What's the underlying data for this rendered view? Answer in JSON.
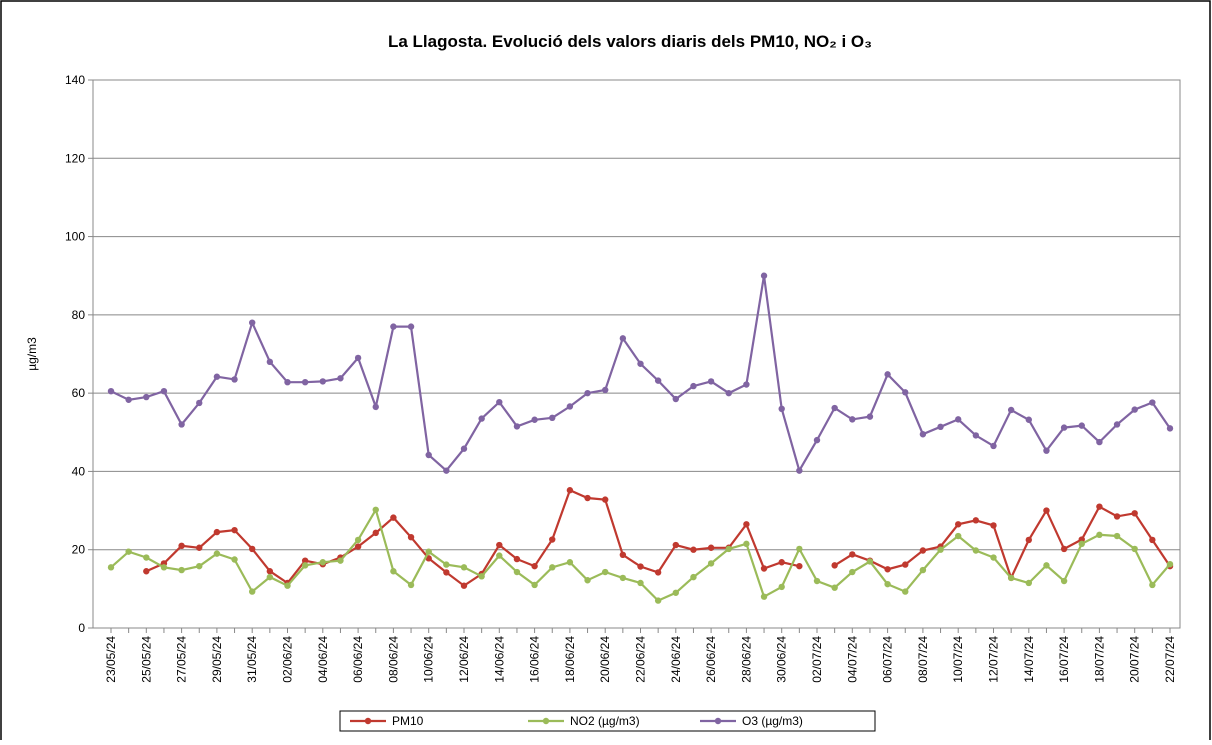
{
  "chart_data": {
    "type": "line",
    "title": "La Llagosta. Evolució dels valors diaris dels PM10, NO₂ i O₃",
    "y_label": "µg/m3",
    "categories": [
      "23/05/24",
      null,
      "25/05/24",
      null,
      "27/05/24",
      null,
      "29/05/24",
      null,
      "31/05/24",
      null,
      "02/06/24",
      null,
      "04/06/24",
      null,
      "06/06/24",
      null,
      "08/06/24",
      null,
      "10/06/24",
      null,
      "12/06/24",
      null,
      "14/06/24",
      null,
      "16/06/24",
      null,
      "18/06/24",
      null,
      "20/06/24",
      null,
      "22/06/24",
      null,
      "24/06/24",
      null,
      "26/06/24",
      null,
      "28/06/24",
      null,
      "30/06/24",
      null,
      "02/07/24",
      null,
      "04/07/24",
      null,
      "06/07/24",
      null,
      "08/07/24",
      null,
      "10/07/24",
      null,
      "12/07/24",
      null,
      "14/07/24",
      null,
      "16/07/24",
      null,
      "18/07/24",
      null,
      "20/07/24",
      null,
      "22/07/24"
    ],
    "series": [
      {
        "name": "PM10",
        "color": "#c0392f",
        "values": [
          null,
          null,
          14.5,
          16.5,
          21,
          20.5,
          24.5,
          25,
          20.2,
          14.5,
          11.5,
          17.2,
          16.3,
          18,
          20.8,
          24.3,
          28.2,
          23.2,
          17.8,
          14.2,
          10.8,
          13.8,
          21.2,
          17.6,
          15.8,
          22.6,
          35.2,
          33.2,
          32.8,
          18.7,
          15.7,
          14.2,
          21.2,
          20,
          20.5,
          20.5,
          26.5,
          15.2,
          16.8,
          15.8,
          null,
          16,
          18.8,
          17.2,
          15,
          16.2,
          19.8,
          20.8,
          26.5,
          27.5,
          26.2,
          12.8,
          22.5,
          30,
          20.2,
          22.6,
          31,
          28.5,
          29.3,
          22.5,
          15.8
        ]
      },
      {
        "name": "NO2 (µg/m3)",
        "color": "#9bbb59",
        "values": [
          15.5,
          19.5,
          18,
          15.5,
          14.8,
          15.8,
          19,
          17.5,
          9.3,
          13,
          10.8,
          16,
          16.8,
          17.2,
          22.5,
          30.2,
          14.5,
          11,
          19.5,
          16.2,
          15.5,
          13.2,
          18.5,
          14.3,
          11,
          15.5,
          16.8,
          12.2,
          14.3,
          12.8,
          11.5,
          7,
          9,
          13,
          16.5,
          20.2,
          21.5,
          8,
          10.5,
          20.2,
          12,
          10.3,
          14.3,
          17,
          11.2,
          9.3,
          14.8,
          20,
          23.5,
          19.8,
          18,
          12.8,
          11.5,
          16,
          12,
          21.5,
          23.8,
          23.5,
          20.2,
          11,
          16.3
        ]
      },
      {
        "name": "O3 (µg/m3)",
        "color": "#8064a2",
        "values": [
          60.5,
          58.3,
          59,
          60.5,
          52,
          57.5,
          64.2,
          63.5,
          78,
          68,
          62.8,
          62.8,
          63,
          63.8,
          69,
          56.5,
          77,
          77,
          44.2,
          40.2,
          45.8,
          53.5,
          57.7,
          51.5,
          53.2,
          53.7,
          56.6,
          60,
          60.8,
          74,
          67.5,
          63.2,
          58.5,
          61.8,
          63,
          60,
          62.2,
          90,
          56,
          40.2,
          48,
          56.2,
          53.3,
          54,
          64.8,
          60.2,
          49.5,
          51.4,
          53.3,
          49.2,
          46.5,
          55.7,
          53.2,
          45.3,
          51.2,
          51.7,
          47.5,
          52,
          55.8,
          57.6,
          51
        ]
      }
    ],
    "ylim": [
      0,
      140
    ],
    "yticks": [
      0,
      20,
      40,
      60,
      80,
      100,
      120,
      140
    ],
    "grid": true,
    "legend": "bottom"
  }
}
